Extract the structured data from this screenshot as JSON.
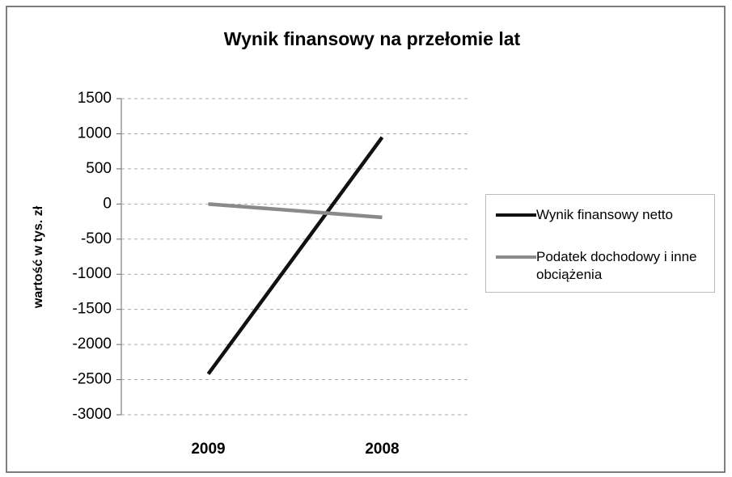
{
  "chart_data": {
    "type": "line",
    "title": "Wynik finansowy na przełomie lat",
    "y_label": "wartość w tys. zł",
    "categories": [
      "2009",
      "2008"
    ],
    "series": [
      {
        "name": "Wynik finansowy netto",
        "color": "#111111",
        "values": [
          -2420,
          950
        ]
      },
      {
        "name": "Podatek dochodowy i inne obciążenia",
        "color": "#8a8a8a",
        "values": [
          0,
          -190
        ]
      }
    ],
    "ylim": [
      -3000,
      1500
    ],
    "yticks": [
      -3000,
      -2500,
      -2000,
      -1500,
      -1000,
      -500,
      0,
      500,
      1000,
      1500
    ],
    "grid": true,
    "legend": "right"
  }
}
